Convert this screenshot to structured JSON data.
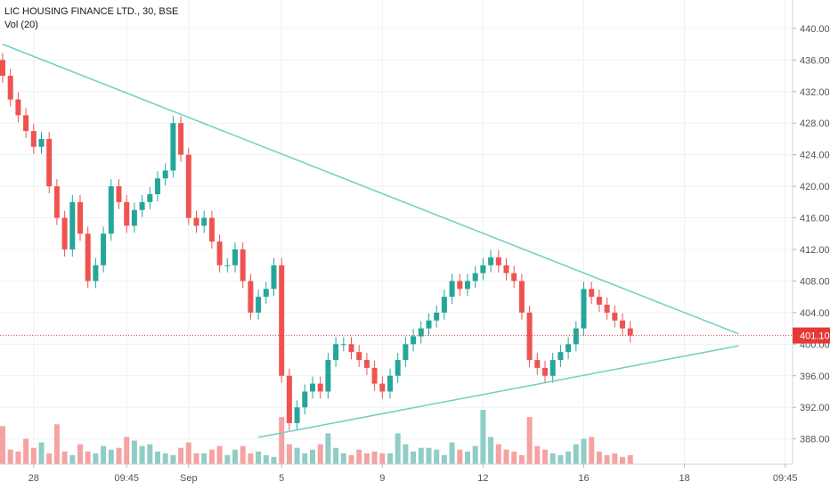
{
  "legend": {
    "symbol": "LIC HOUSING FINANCE LTD., 30, BSE",
    "volume": "Vol (20)"
  },
  "colors": {
    "up": "#26a69a",
    "down": "#ef5350",
    "up_volume": "#8fcdc6",
    "down_volume": "#f5a3a1",
    "trendline": "#6fcfc0",
    "price_line": "#e53935",
    "grid": "#eef0f3",
    "axis_text": "#50535e"
  },
  "chart_data": {
    "type": "candlestick",
    "y_axis": {
      "ticks": [
        388,
        392,
        396,
        400,
        404,
        408,
        412,
        416,
        420,
        424,
        428,
        432,
        436,
        440
      ],
      "tick_labels": [
        "388.00",
        "392.00",
        "396.00",
        "400.00",
        "404.00",
        "408.00",
        "412.00",
        "416.00",
        "420.00",
        "424.00",
        "428.00",
        "432.00",
        "436.00",
        "440.00"
      ],
      "ylim": [
        384.8,
        443.6
      ]
    },
    "x_axis": {
      "tick_labels": [
        "28",
        "09:45",
        "Sep",
        "5",
        "9",
        "12",
        "16",
        "18",
        "09:45"
      ],
      "tick_bar_index": [
        4,
        16,
        24,
        36,
        49,
        62,
        75,
        88,
        101
      ]
    },
    "last_price": 401.1,
    "last_price_label": "401.10",
    "trendlines": [
      {
        "name": "upper",
        "from": {
          "bar": 0,
          "price": 438.0
        },
        "to": {
          "bar": 95,
          "price": 401.3
        }
      },
      {
        "name": "lower",
        "from": {
          "bar": 33,
          "price": 388.2
        },
        "to": {
          "bar": 95,
          "price": 399.8
        }
      }
    ],
    "closes": [
      434,
      431,
      429,
      427,
      425,
      426,
      420,
      416,
      412,
      418,
      414,
      408,
      410,
      414,
      420,
      418,
      415,
      417,
      418,
      419,
      421,
      422,
      428,
      424,
      416,
      415,
      416,
      413,
      410,
      410,
      412,
      408,
      404,
      406,
      407,
      410,
      396,
      390,
      392,
      394,
      395,
      394,
      398,
      400,
      400,
      399,
      398,
      397,
      395,
      394,
      396,
      398,
      400,
      401,
      402,
      403,
      404,
      406,
      408,
      407,
      408,
      409,
      410,
      411,
      410,
      409,
      408,
      404,
      398,
      397,
      396,
      398,
      399,
      400,
      402,
      407,
      406,
      405,
      404,
      403,
      402,
      401.1
    ],
    "volumes": [
      2.1,
      0.8,
      0.7,
      1.4,
      0.9,
      1.2,
      0.6,
      2.2,
      0.7,
      0.5,
      1.1,
      0.7,
      0.6,
      1.0,
      0.8,
      0.9,
      1.5,
      1.3,
      1.0,
      1.1,
      0.7,
      0.6,
      0.5,
      0.9,
      1.2,
      0.6,
      0.6,
      0.8,
      1.0,
      0.5,
      0.8,
      1.0,
      0.6,
      0.7,
      0.5,
      0.4,
      2.6,
      1.1,
      0.9,
      0.6,
      0.8,
      1.1,
      1.7,
      0.9,
      0.6,
      0.5,
      0.8,
      0.6,
      0.7,
      0.6,
      0.6,
      1.7,
      1.1,
      0.7,
      0.9,
      0.9,
      0.8,
      0.5,
      1.2,
      0.8,
      0.7,
      1.0,
      3.0,
      1.5,
      1.1,
      0.8,
      0.7,
      0.5,
      2.6,
      1.0,
      0.8,
      0.6,
      0.5,
      0.7,
      1.1,
      1.4,
      1.5,
      0.7,
      0.5,
      0.6,
      0.4,
      0.5
    ]
  }
}
